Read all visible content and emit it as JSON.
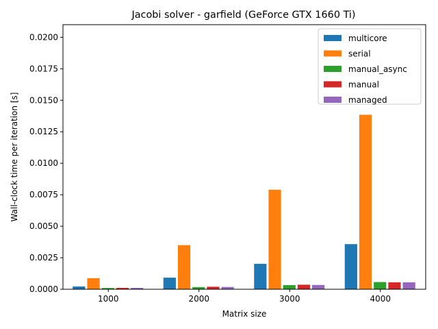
{
  "chart_data": {
    "type": "bar",
    "title": "Jacobi solver - garfield (GeForce GTX 1660 Ti)",
    "xlabel": "Matrix size",
    "ylabel": "Wall-clock time per iteration [s]",
    "categories": [
      "1000",
      "2000",
      "3000",
      "4000"
    ],
    "ylim": [
      0,
      0.021
    ],
    "yticks": [
      "0.0000",
      "0.0025",
      "0.0050",
      "0.0075",
      "0.0100",
      "0.0125",
      "0.0150",
      "0.0175",
      "0.0200"
    ],
    "legend_position": "top-right",
    "grid": false,
    "series": [
      {
        "name": "multicore",
        "color": "#1f77b4",
        "values": [
          0.00022,
          0.00092,
          0.00202,
          0.00358
        ]
      },
      {
        "name": "serial",
        "color": "#ff7f0e",
        "values": [
          0.00088,
          0.0035,
          0.0079,
          0.01385
        ]
      },
      {
        "name": "manual_async",
        "color": "#2ca02c",
        "values": [
          0.0001,
          0.00017,
          0.00033,
          0.00057
        ]
      },
      {
        "name": "manual",
        "color": "#d62728",
        "values": [
          0.00011,
          0.0002,
          0.00036,
          0.00055
        ]
      },
      {
        "name": "managed",
        "color": "#9467bd",
        "values": [
          0.00011,
          0.00018,
          0.00034,
          0.00055
        ]
      }
    ]
  }
}
